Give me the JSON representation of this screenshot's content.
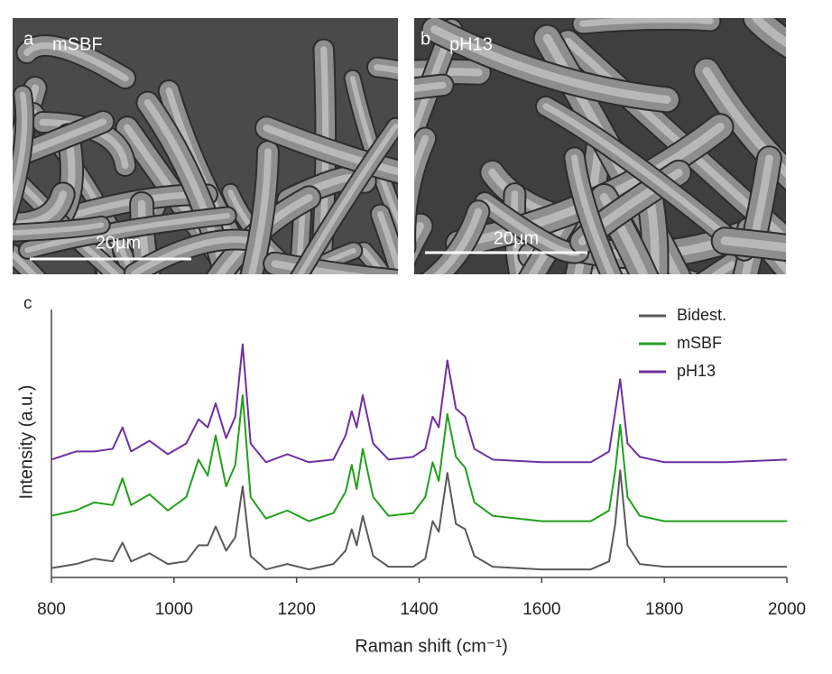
{
  "panels": [
    {
      "letter": "a",
      "label": "mSBF",
      "scale": "20µm"
    },
    {
      "letter": "b",
      "label": "pH13",
      "scale": "20µm"
    }
  ],
  "chart_data": {
    "type": "line",
    "panel_letter": "c",
    "x_label": "Raman shift (cm⁻¹)",
    "y_label": "Intensity (a.u.)",
    "xlim": [
      800,
      2000
    ],
    "xticks": [
      800,
      1000,
      1200,
      1400,
      1600,
      1800,
      2000
    ],
    "ylim": [
      0,
      100
    ],
    "x": [
      800,
      840,
      870,
      900,
      916,
      930,
      960,
      990,
      1020,
      1040,
      1055,
      1068,
      1085,
      1100,
      1112,
      1125,
      1150,
      1185,
      1220,
      1260,
      1280,
      1290,
      1298,
      1308,
      1325,
      1350,
      1390,
      1410,
      1422,
      1432,
      1446,
      1460,
      1475,
      1490,
      1520,
      1600,
      1680,
      1710,
      1720,
      1728,
      1740,
      1760,
      1800,
      1900,
      2000
    ],
    "series": [
      {
        "name": "Bidest.",
        "color": "#5a5a5a",
        "values": [
          3.5,
          5,
          7,
          6,
          13,
          6,
          9,
          5,
          6,
          12,
          12,
          19,
          10,
          15,
          34,
          8,
          3,
          5,
          3,
          5,
          10,
          18,
          12,
          23,
          8,
          4,
          4,
          7,
          21,
          17,
          39,
          20,
          18,
          8,
          4,
          3,
          3,
          6,
          20,
          40,
          12,
          5,
          4,
          4,
          4
        ]
      },
      {
        "name": "mSBF",
        "color": "#22a01c",
        "values": [
          23,
          25,
          28,
          27,
          37,
          27,
          31,
          25,
          30,
          44,
          38,
          53,
          34,
          42,
          68,
          30,
          22,
          25,
          21,
          24,
          32,
          42,
          33,
          48,
          30,
          23,
          24,
          30,
          43,
          36,
          61,
          45,
          41,
          28,
          23,
          21,
          21,
          25,
          40,
          57,
          30,
          23,
          21,
          21,
          21
        ]
      },
      {
        "name": "pH13",
        "color": "#7030a0",
        "values": [
          44,
          47,
          47,
          48,
          56,
          47,
          51,
          46,
          50,
          59,
          56,
          65,
          52,
          60,
          87,
          50,
          43,
          46,
          43,
          44,
          53,
          62,
          56,
          68,
          50,
          44,
          45,
          48,
          60,
          56,
          81,
          63,
          60,
          48,
          44,
          43,
          43,
          47,
          62,
          74,
          50,
          45,
          43,
          43,
          44
        ]
      }
    ],
    "legend": "top-right"
  }
}
